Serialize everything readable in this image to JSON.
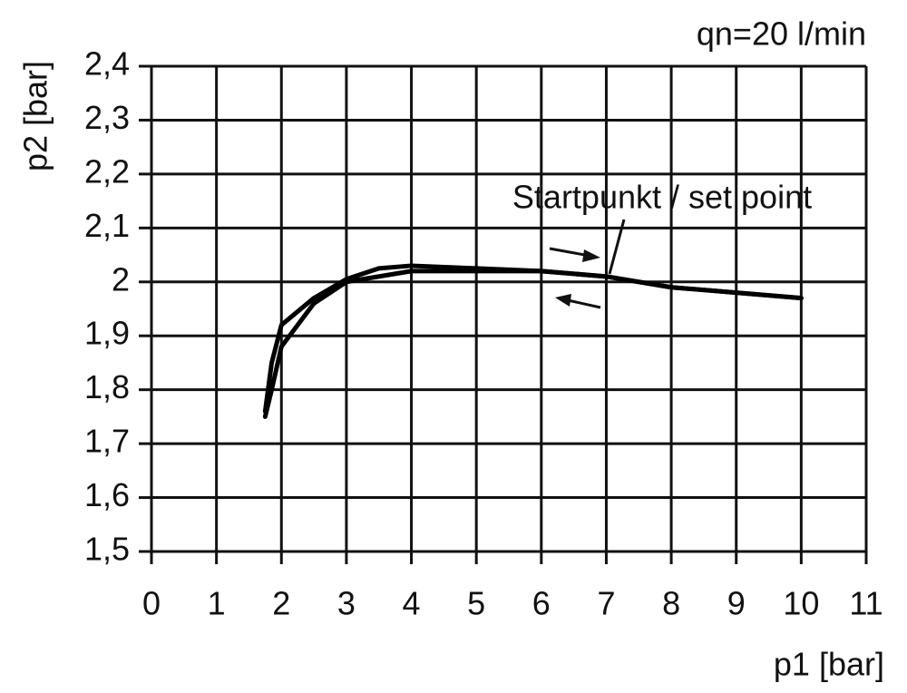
{
  "chart_data": {
    "type": "line",
    "title": "qn=20 l/min",
    "xlabel": "p1 [bar]",
    "ylabel": "p2 [bar]",
    "annotation": "Startpunkt / set point",
    "series": [
      {
        "color": "#000000",
        "x": [
          10,
          8,
          7,
          6,
          5,
          4,
          3.5,
          3,
          2.5,
          2,
          1.85,
          1.75
        ],
        "values": [
          1.97,
          1.99,
          2.01,
          2.02,
          2.025,
          2.03,
          2.025,
          2.005,
          1.97,
          1.92,
          1.85,
          1.76
        ]
      },
      {
        "color": "#000000",
        "x": [
          1.75,
          1.85,
          2,
          2.5,
          3,
          4,
          5,
          6,
          7,
          8,
          10
        ],
        "values": [
          1.75,
          1.8,
          1.88,
          1.96,
          2.0,
          2.02,
          2.02,
          2.02,
          2.01,
          1.99,
          1.97
        ]
      }
    ],
    "xlim": [
      0,
      11
    ],
    "xticks": [
      0,
      1,
      2,
      3,
      4,
      5,
      6,
      7,
      8,
      9,
      10,
      11
    ],
    "ylim": [
      1.5,
      2.4
    ],
    "yticks": [
      {
        "value": 1.5,
        "label": "1,5"
      },
      {
        "value": 1.6,
        "label": "1,6"
      },
      {
        "value": 1.7,
        "label": "1,7"
      },
      {
        "value": 1.8,
        "label": "1,8"
      },
      {
        "value": 1.9,
        "label": "1,9"
      },
      2,
      {
        "value": 2.1,
        "label": "2,1"
      },
      {
        "value": 2.2,
        "label": "2,2"
      },
      {
        "value": 2.3,
        "label": "2,3"
      },
      {
        "value": 2.4,
        "label": "2,4"
      }
    ],
    "grid": true
  }
}
